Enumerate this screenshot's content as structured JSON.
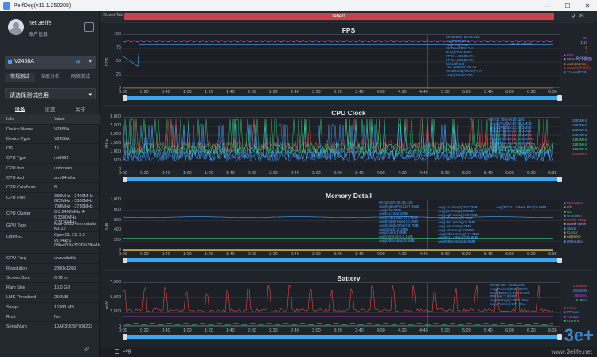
{
  "app": {
    "title": "PerfDog(v11.1.250208)"
  },
  "window_controls": {
    "minimize": "—",
    "maximize": "☐",
    "close": "✕"
  },
  "user": {
    "name": "net 3elife",
    "info": "账户信息"
  },
  "device": {
    "name": "V2458A"
  },
  "mode_tabs": [
    "常规测试",
    "深度分析",
    "网络测试"
  ],
  "app_select": {
    "placeholder": "请选择测试应用"
  },
  "panel_tabs": [
    "设备",
    "设置",
    "关于"
  ],
  "info_table": {
    "header": {
      "k": "Info",
      "v": "Value"
    },
    "rows": [
      {
        "k": "Device Name",
        "v": "V2458A"
      },
      {
        "k": "Device Type",
        "v": "V2458A"
      },
      {
        "k": "OS",
        "v": "15"
      },
      {
        "k": "CPU Type",
        "v": "mt6991"
      },
      {
        "k": "CPU Info",
        "v": "unknown"
      },
      {
        "k": "CPU Arch",
        "v": "arm64-v8a"
      },
      {
        "k": "CPU CoreNum",
        "v": "8"
      },
      {
        "k": "CPU Freq",
        "v": "339MHz - 2400MHz 622MHz - 3300MHz 798MHz - 3730MHz"
      },
      {
        "k": "CPU Cluster",
        "v": "0-3:2400MHz 4-6:3300MHz 7:3730MHz"
      },
      {
        "k": "GPU Type",
        "v": "Mali-G925-Immortalis MC12"
      },
      {
        "k": "OpenGL",
        "v": "OpenGL ES 3.2 v1.r49p1-03bet0.9a303f2b7f6a1b089a8ec9199cd0a8d4"
      },
      {
        "k": "GPU Freq",
        "v": "unavailable"
      },
      {
        "k": "Resolution",
        "v": "2800x1260"
      },
      {
        "k": "Screen Size",
        "v": "6.78 in"
      },
      {
        "k": "Ram Size",
        "v": "15.0 GB"
      },
      {
        "k": "LMK Threshold",
        "v": "216MB"
      },
      {
        "k": "Swap",
        "v": "16383 MB"
      },
      {
        "k": "Root",
        "v": "No"
      },
      {
        "k": "SerialNum",
        "v": "10AF3U05P700203"
      }
    ]
  },
  "tabs": {
    "scene": "SceneTab",
    "label": "label1"
  },
  "top_icons": [
    "⚲",
    "⚙",
    "⋮"
  ],
  "x_ticks": [
    "0:00",
    "0:20",
    "0:40",
    "1:00",
    "1:20",
    "1:40",
    "2:00",
    "2:20",
    "2:40",
    "3:00",
    "3:20",
    "3:40",
    "4:00",
    "4:20",
    "4:40",
    "5:00",
    "5:20",
    "5:40",
    "6:00",
    "6:20",
    "6:36"
  ],
  "panels": {
    "fps": {
      "title": "FPS",
      "ylabel": "FPS",
      "yticks": [
        "100",
        "75",
        "50",
        "25",
        "0"
      ],
      "stats": "00:02.280~06:35.225\nAvg(FPS):88.1\nVar(FPS):2.06\nStdDev(FPS):1.4\nDrop(FPS):0.0/h\nFPS>=18:100.0%\nFPS>=25:100.0%\nSmooth:4.3\nTHLow(FPS):88.84\nSmallJank(/10min):0.0\nJank(/10min):0.0",
      "stats_right": "Stutter:0.00%",
      "legend": [
        {
          "name": "FPS",
          "color": "#e040d8"
        },
        {
          "name": "Smooth(卡顿度)",
          "color": "#c9a0ff"
        },
        {
          "name": "Jank(/10min)",
          "color": "#e6a040"
        },
        {
          "name": "Stutter(卡顿率)",
          "color": "#e04040"
        },
        {
          "name": "THLow(FPS)",
          "color": "#4aa3ff"
        }
      ],
      "rvals": [
        "90",
        "1.17",
        "0",
        "0",
        "90 FPS"
      ]
    },
    "cpu": {
      "title": "CPU Clock",
      "ylabel": "MHz",
      "yticks": [
        "3,000",
        "2,500",
        "2,000",
        "1,500",
        "1,000",
        "500",
        "0"
      ],
      "stats": "00:02.280~06:35.225\nAvg(CPUClock0):912MHz\nAvg(CPUClock1):912MHz\nAvg(CPUClock2):912MHz\nAvg(CPUClock3):912MHz\nAvg(CPUClock4):1201MHz\nAvg(CPUClock5):1201MHz\nAvg(CPUClock6):1201MHz\nAvg(CPUClock7):1351MHz",
      "rvals": [
        "1583MHz",
        "1583MHz",
        "1583MHz",
        "1583MHz",
        "1183MHz",
        "1183MHz",
        "1183MHz",
        "2400MHz"
      ],
      "colors": [
        "#4aa3ff",
        "#4aa3ff",
        "#4aa3ff",
        "#4aa3ff",
        "#40d080",
        "#40d080",
        "#40d080",
        "#e04a4a"
      ]
    },
    "memory": {
      "title": "Memory Detail",
      "ylabel": "MB",
      "yticks": [
        "1,000",
        "800",
        "600",
        "400",
        "200",
        "0"
      ],
      "stats1": "00:02.280~06:35.225\nAvg(NativePss):237.3MB\nAvg(Gfx):0MB\nAvg(GL):262.1MB\nAvg(Unknown):672.5MB\nAvg(Dalvik Heap):0.3MB\nAvg(Dalvik Other):3.7MB\nAvg(Stack):2.1MB\nAvg(Cursor):0MB\nAvg(Ashmem):0.1MB\nAvg(Other dev):0.5MB",
      "stats2": "Avg(.so mmap):257.7MB\nAvg(.jar mmap):0.1MB\nAvg(.apk mmap):25.7MB\nAvg(.ttf mmap):0.2MB\nAvg(.dex mmap):0.7MB\nAvg(.oat mmap):0MB\nAvg(.art mmap):0.6MB\nAvg(Other mmap):12.4MB\nAvg(EGL mtrack):35.9MB\nAvg(Other mtrack):0MB",
      "stats3": "Avg(TOTAL SWAP PSS):0.0MB",
      "legend": [
        {
          "name": "NativePss",
          "color": "#e040d8"
        },
        {
          "name": "Gfx",
          "color": "#e6a040"
        },
        {
          "name": "GL",
          "color": "#40d080"
        },
        {
          "name": "Unknown",
          "color": "#4aa3ff"
        },
        {
          "name": "Dalvik Heap",
          "color": "#e04040"
        },
        {
          "name": "Dalvik Other",
          "color": "#c9a0ff"
        },
        {
          "name": "Stack",
          "color": "#40c0c0"
        },
        {
          "name": "Cursor",
          "color": "#a0a0a0"
        },
        {
          "name": "Ashmem",
          "color": "#d0d040"
        },
        {
          "name": "Other dev",
          "color": "#80a0ff"
        }
      ]
    },
    "battery": {
      "title": "Battery",
      "ylabel": "mW",
      "yticks": [
        "7,500",
        "5,000",
        "2,500",
        "0"
      ],
      "stats": "00:02.280~06:35.225\nAvg(Power):2680.8mW\nSum(Battery):291.5mWh\nPPower:2.8mWh\nAvg(Voltage):3987.0mV\nAvg(Current):672.4mA",
      "rvals": [
        "2394mW",
        "2024mW",
        "4002mV",
        "519mA"
      ],
      "legend": [
        {
          "name": "Power",
          "color": "#e04a4a"
        },
        {
          "name": "PPower",
          "color": "#4aa3ff"
        },
        {
          "name": "Voltage",
          "color": "#c040d8"
        },
        {
          "name": "Current",
          "color": "#40d080"
        }
      ]
    }
  },
  "chart_data": [
    {
      "type": "line",
      "title": "FPS",
      "ylabel": "FPS",
      "ylim": [
        0,
        100
      ],
      "x_range": [
        "0:00",
        "6:36"
      ],
      "series": [
        {
          "name": "FPS",
          "values": [
            88,
            89,
            88,
            89,
            88,
            88,
            89,
            88,
            88,
            89
          ]
        },
        {
          "name": "THLow(FPS)",
          "values": [
            60,
            78,
            80,
            81,
            82,
            82,
            83,
            83,
            83,
            83
          ]
        }
      ]
    },
    {
      "type": "line",
      "title": "CPU Clock",
      "ylabel": "MHz",
      "ylim": [
        0,
        3000
      ],
      "x_range": [
        "0:00",
        "6:36"
      ]
    },
    {
      "type": "line",
      "title": "Memory Detail",
      "ylabel": "MB",
      "ylim": [
        0,
        1000
      ],
      "x_range": [
        "0:00",
        "6:36"
      ]
    },
    {
      "type": "line",
      "title": "Battery",
      "ylabel": "mW",
      "ylim": [
        0,
        7500
      ],
      "x_range": [
        "0:00",
        "6:36"
      ]
    }
  ],
  "bottom": {
    "log": "Log",
    "watermark": "www.3elife.net",
    "wm_logo": "3e+"
  }
}
